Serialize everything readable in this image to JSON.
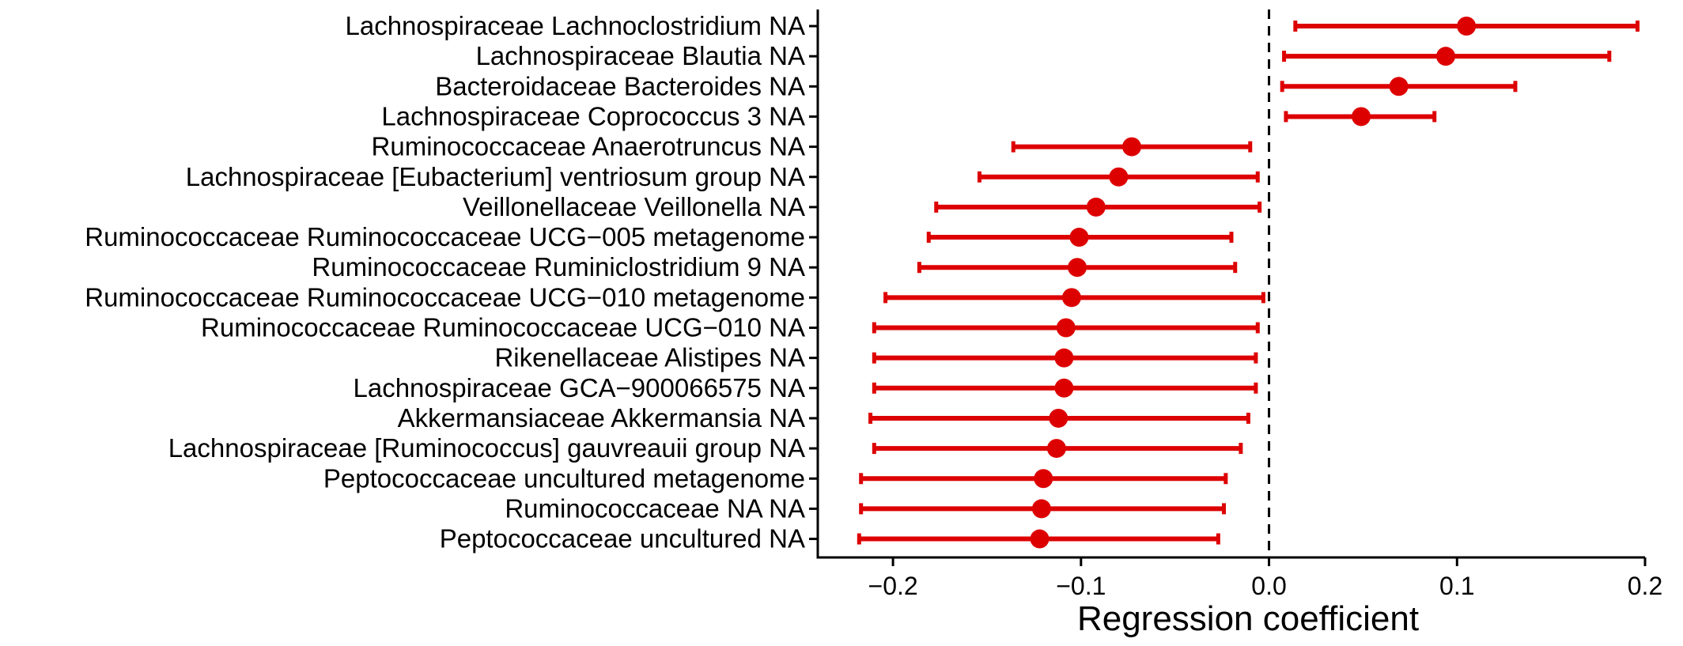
{
  "chart_data": {
    "type": "forest",
    "xlabel": "Regression coefficient",
    "xlim": [
      -0.24,
      0.2
    ],
    "xticks": [
      -0.2,
      -0.1,
      0.0,
      0.1,
      0.2
    ],
    "xtick_labels": [
      "−0.2",
      "−0.1",
      "0.0",
      "0.1",
      "0.2"
    ],
    "reference_line": 0.0,
    "color": "#dd0000",
    "rows": [
      {
        "label": "Lachnospiraceae Lachnoclostridium NA",
        "estimate": 0.105,
        "lower": 0.014,
        "upper": 0.196
      },
      {
        "label": "Lachnospiraceae Blautia NA",
        "estimate": 0.094,
        "lower": 0.008,
        "upper": 0.181
      },
      {
        "label": "Bacteroidaceae Bacteroides NA",
        "estimate": 0.069,
        "lower": 0.007,
        "upper": 0.131
      },
      {
        "label": "Lachnospiraceae Coprococcus 3 NA",
        "estimate": 0.049,
        "lower": 0.009,
        "upper": 0.088
      },
      {
        "label": "Ruminococcaceae Anaerotruncus NA",
        "estimate": -0.073,
        "lower": -0.136,
        "upper": -0.01
      },
      {
        "label": "Lachnospiraceae [Eubacterium] ventriosum group NA",
        "estimate": -0.08,
        "lower": -0.154,
        "upper": -0.006
      },
      {
        "label": "Veillonellaceae Veillonella NA",
        "estimate": -0.092,
        "lower": -0.177,
        "upper": -0.005
      },
      {
        "label": "Ruminococcaceae Ruminococcaceae UCG−005 metagenome",
        "estimate": -0.101,
        "lower": -0.181,
        "upper": -0.02
      },
      {
        "label": "Ruminococcaceae Ruminiclostridium 9 NA",
        "estimate": -0.102,
        "lower": -0.186,
        "upper": -0.018
      },
      {
        "label": "Ruminococcaceae Ruminococcaceae UCG−010 metagenome",
        "estimate": -0.105,
        "lower": -0.204,
        "upper": -0.003
      },
      {
        "label": "Ruminococcaceae Ruminococcaceae UCG−010 NA",
        "estimate": -0.108,
        "lower": -0.21,
        "upper": -0.006
      },
      {
        "label": "Rikenellaceae Alistipes NA",
        "estimate": -0.109,
        "lower": -0.21,
        "upper": -0.007
      },
      {
        "label": "Lachnospiraceae GCA−900066575 NA",
        "estimate": -0.109,
        "lower": -0.21,
        "upper": -0.007
      },
      {
        "label": "Akkermansiaceae Akkermansia NA",
        "estimate": -0.112,
        "lower": -0.212,
        "upper": -0.011
      },
      {
        "label": "Lachnospiraceae [Ruminococcus] gauvreauii group NA",
        "estimate": -0.113,
        "lower": -0.21,
        "upper": -0.015
      },
      {
        "label": "Peptococcaceae uncultured metagenome",
        "estimate": -0.12,
        "lower": -0.217,
        "upper": -0.023
      },
      {
        "label": "Ruminococcaceae NA NA",
        "estimate": -0.121,
        "lower": -0.217,
        "upper": -0.024
      },
      {
        "label": "Peptococcaceae uncultured NA",
        "estimate": -0.122,
        "lower": -0.218,
        "upper": -0.027
      }
    ]
  }
}
